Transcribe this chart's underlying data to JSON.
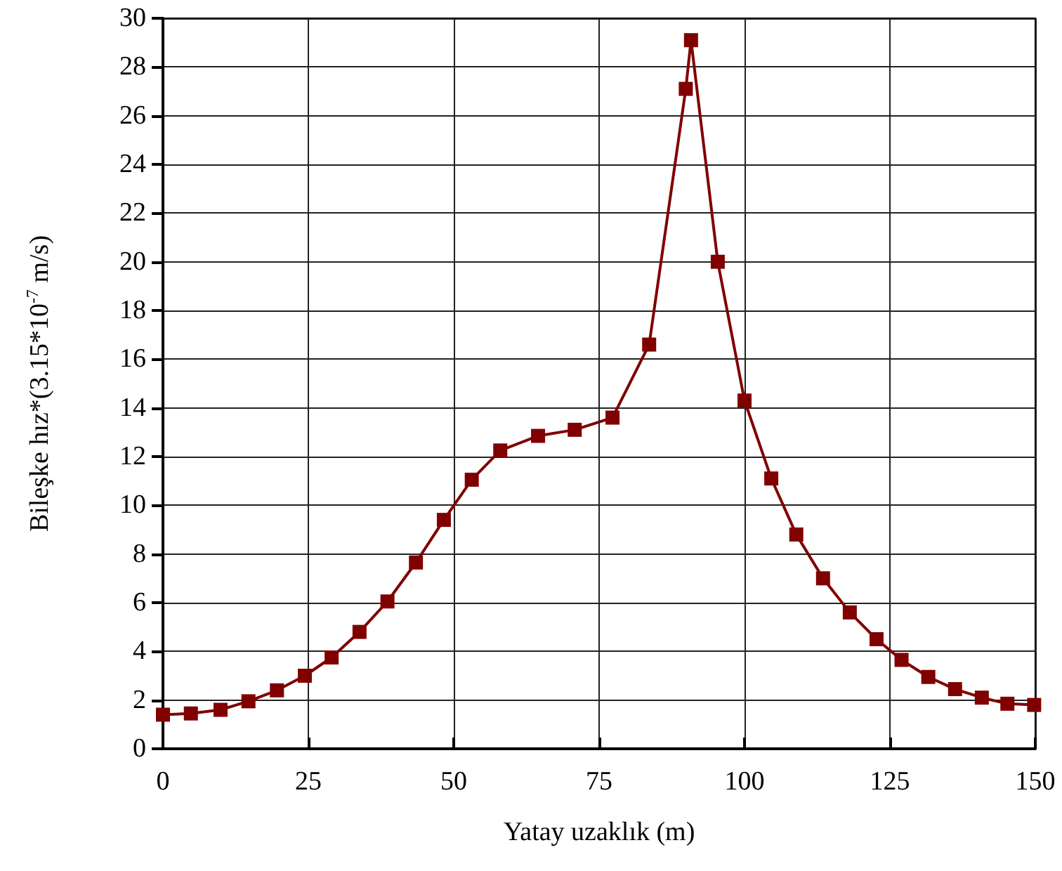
{
  "chart_data": {
    "type": "line",
    "xlabel": "Yatay uzaklık (m)",
    "ylabel": "Bileşke hız*(3.15*10$^{-7}$ m/s)",
    "x": [
      0,
      4.8,
      9.9,
      14.7,
      19.6,
      24.4,
      29,
      33.8,
      38.6,
      43.5,
      48.3,
      53.1,
      58,
      64.5,
      70.8,
      77.3,
      83.6,
      89.9,
      90.8,
      95.4,
      100,
      104.6,
      108.9,
      113.5,
      118.1,
      122.7,
      127,
      131.6,
      136.2,
      140.8,
      145.2,
      149.8
    ],
    "series": [
      {
        "color": "#800000",
        "values": [
          1.4,
          1.45,
          1.6,
          1.95,
          2.4,
          3.0,
          3.75,
          4.8,
          6.05,
          7.65,
          9.4,
          11.05,
          12.25,
          12.85,
          13.1,
          13.6,
          16.6,
          27.1,
          29.1,
          20.0,
          14.3,
          11.1,
          8.8,
          7.0,
          5.6,
          4.5,
          3.65,
          2.95,
          2.45,
          2.1,
          1.85,
          1.8
        ]
      }
    ],
    "xlim": [
      0,
      150
    ],
    "xticks": [
      0,
      25,
      50,
      75,
      100,
      125,
      150
    ],
    "ylim": [
      0,
      30
    ],
    "yticks": [
      0,
      2,
      4,
      6,
      8,
      10,
      12,
      14,
      16,
      18,
      20,
      22,
      24,
      26,
      28,
      30
    ],
    "grid": true,
    "marker": "square",
    "line_style": "solid"
  }
}
